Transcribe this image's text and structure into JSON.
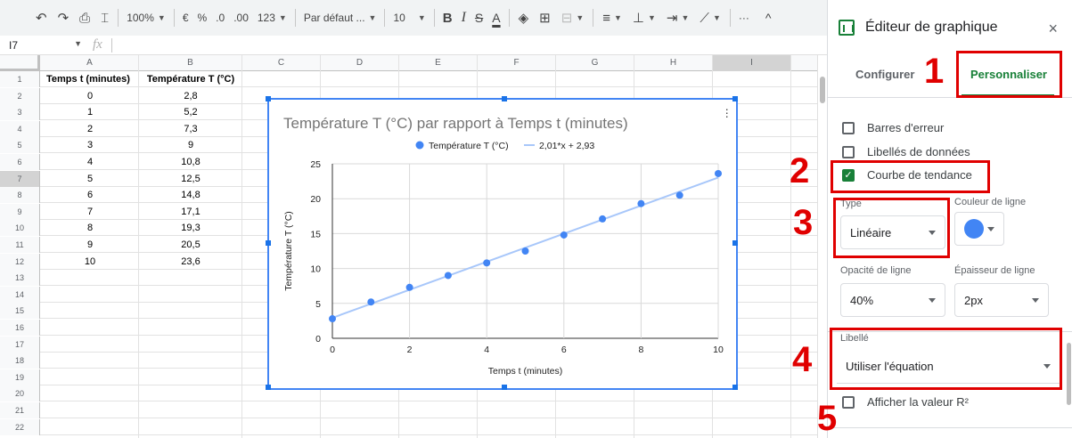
{
  "toolbar": {
    "zoom": "100%",
    "currency": "€",
    "percent": "%",
    "dec_decrease": ".0",
    "dec_increase": ".00",
    "number_format": "123",
    "font": "Par défaut ...",
    "font_size": "10",
    "bold": "B",
    "italic": "I",
    "strike": "S",
    "text_color": "A",
    "more": "···",
    "collapse": "^"
  },
  "formula_bar": {
    "cell_ref": "I7",
    "fx": "fx"
  },
  "columns": [
    "A",
    "B",
    "C",
    "D",
    "E",
    "F",
    "G",
    "H",
    "I"
  ],
  "row_numbers": [
    "1",
    "2",
    "3",
    "4",
    "5",
    "6",
    "7",
    "8",
    "9",
    "10",
    "11",
    "12",
    "13",
    "14",
    "15",
    "16",
    "17",
    "18",
    "19",
    "20",
    "21",
    "22"
  ],
  "sheet": {
    "headers": [
      "Temps t (minutes)",
      "Température T (°C)"
    ],
    "rows": [
      [
        "0",
        "2,8"
      ],
      [
        "1",
        "5,2"
      ],
      [
        "2",
        "7,3"
      ],
      [
        "3",
        "9"
      ],
      [
        "4",
        "10,8"
      ],
      [
        "5",
        "12,5"
      ],
      [
        "6",
        "14,8"
      ],
      [
        "7",
        "17,1"
      ],
      [
        "8",
        "19,3"
      ],
      [
        "9",
        "20,5"
      ],
      [
        "10",
        "23,6"
      ]
    ]
  },
  "chart_data": {
    "type": "scatter",
    "title": "Température T (°C) par rapport à Temps t (minutes)",
    "xlabel": "Temps t (minutes)",
    "ylabel": "Température T (°C)",
    "xlim": [
      0,
      10
    ],
    "ylim": [
      0,
      25
    ],
    "x_ticks": [
      "0",
      "2",
      "4",
      "6",
      "8",
      "10"
    ],
    "y_ticks": [
      "0",
      "5",
      "10",
      "15",
      "20",
      "25"
    ],
    "grid": true,
    "legend_position": "top",
    "series": [
      {
        "name": "Température T (°C)",
        "color": "#4285f4",
        "x": [
          0,
          1,
          2,
          3,
          4,
          5,
          6,
          7,
          8,
          9,
          10
        ],
        "y": [
          2.8,
          5.2,
          7.3,
          9,
          10.8,
          12.5,
          14.8,
          17.1,
          19.3,
          20.5,
          23.6
        ]
      }
    ],
    "trendline": {
      "label": "2,01*x + 2,93",
      "slope": 2.01,
      "intercept": 2.93,
      "color": "#a8c7fa"
    }
  },
  "panel": {
    "title": "Éditeur de graphique",
    "close": "×",
    "tabs": [
      "Configurer",
      "Personnaliser"
    ],
    "active_tab": "Personnaliser",
    "checkboxes": {
      "error_bars": "Barres d'erreur",
      "data_labels": "Libellés de données",
      "trendline": "Courbe de tendance",
      "show_r2": "Afficher la valeur R²"
    },
    "type_label": "Type",
    "type_value": "Linéaire",
    "line_color_label": "Couleur de ligne",
    "line_color": "#4285f4",
    "opacity_label": "Opacité de ligne",
    "opacity_value": "40%",
    "thickness_label": "Épaisseur de ligne",
    "thickness_value": "2px",
    "label_label": "Libellé",
    "label_value": "Utiliser l'équation"
  },
  "annotations": [
    "1",
    "2",
    "3",
    "4",
    "5"
  ]
}
